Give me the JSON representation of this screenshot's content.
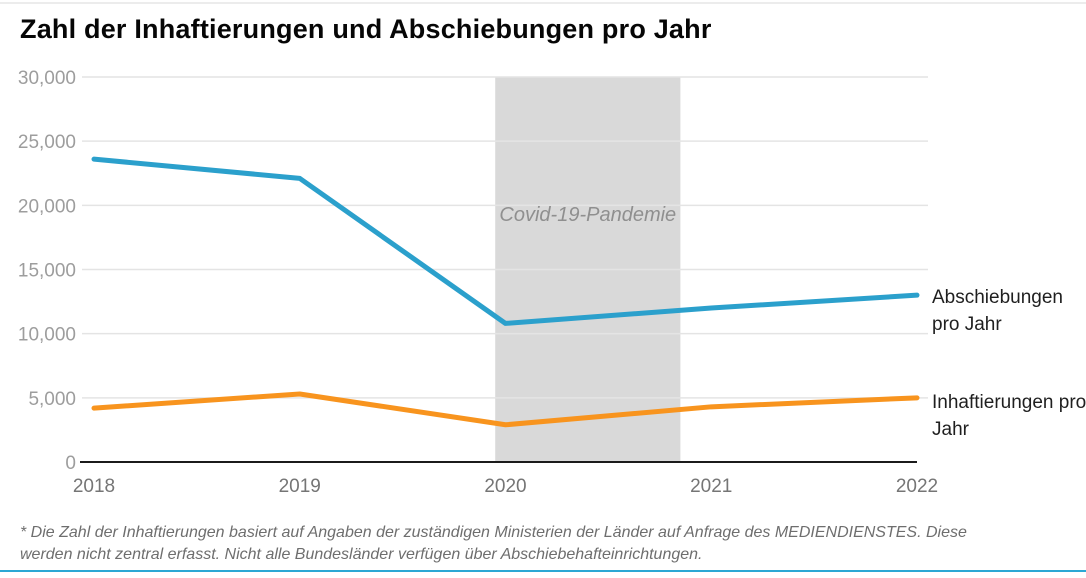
{
  "page": {
    "title": "Zahl der Inhaftierungen und Abschiebungen pro Jahr",
    "footnote_lines": [
      "* Die Zahl der Inhaftierungen basiert auf Angaben der zuständigen Ministerien der Länder auf Anfrage des MEDIENDIENSTES. Diese",
      "werden nicht zentral erfasst. Nicht alle Bundesländer verfügen über Abschiebehafteinrichtungen."
    ]
  },
  "chart_data": {
    "type": "line",
    "title": "Zahl der Inhaftierungen und Abschiebungen pro Jahr",
    "categories": [
      2018,
      2019,
      2020,
      2021,
      2022
    ],
    "series": [
      {
        "name": "Abschiebungen pro Jahr",
        "color": "#2BA0CC",
        "values": [
          23600,
          22100,
          10800,
          12000,
          13000
        ]
      },
      {
        "name": "Inhaftierungen pro Jahr",
        "color": "#F8941E",
        "values": [
          4200,
          5300,
          2900,
          4300,
          5000
        ]
      }
    ],
    "xlabel": "",
    "ylabel": "",
    "ylim": [
      0,
      30000
    ],
    "ytick_step": 5000,
    "ytick_labels": [
      "0",
      "5,000",
      "10,000",
      "15,000",
      "20,000",
      "25,000",
      "30,000"
    ],
    "grid": "horizontal",
    "legend_position": "right-of-line-ends",
    "annotation_band": {
      "label": "Covid-19-Pandemie",
      "start_year": 2019.95,
      "end_year": 2020.85,
      "color": "#D9D9D9",
      "label_color": "#8F8F8F"
    }
  },
  "colors": {
    "background": "#FFFFFF",
    "accent_rule": "#2BA8D4",
    "axis_line": "#1B1B1B",
    "gridline": "#E4E4E4",
    "y_tick_text": "#9D9D9D",
    "x_tick_text": "#757575",
    "footnote_text": "#6E6E6E",
    "title_text": "#060606"
  }
}
